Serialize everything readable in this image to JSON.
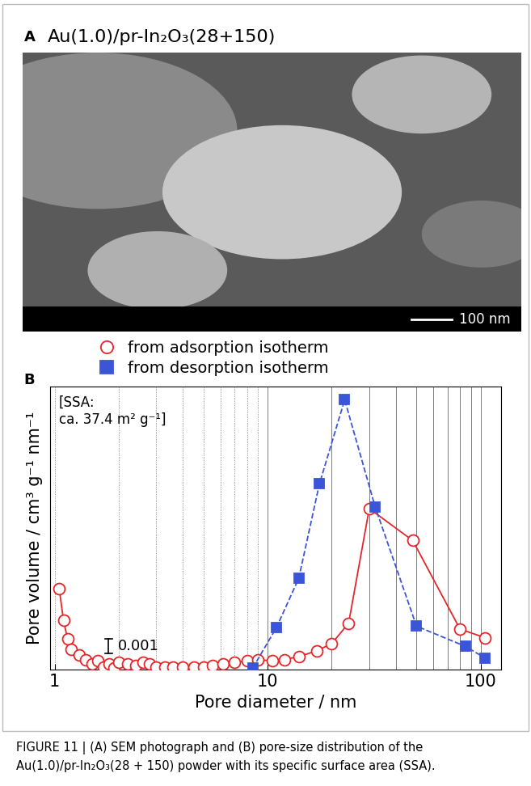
{
  "panel_a": {
    "label": "A",
    "title": "Au(1.0)/pr-In₂O₃(28+150)",
    "scale_bar": "100 nm"
  },
  "chart_data": {
    "type": "line",
    "panel_label": "B",
    "xlabel": "Pore diameter / nm",
    "ylabel": "Pore volume / cm³ g⁻¹ nm⁻¹",
    "annotation": "[SSA:\nca. 37.4 m² g⁻¹]",
    "scale_bar": 0.001,
    "log": "x",
    "grid": true,
    "legend": "upper left",
    "tick_labels": "x",
    "xlim": [
      0.95,
      125
    ],
    "xticks": [
      1,
      10,
      100
    ],
    "ylim": [
      0,
      0.0195
    ],
    "yticks": [],
    "series": [
      {
        "name": "from adsorption isotherm",
        "color": "#e5262b",
        "marker": "o",
        "line_style": "solid",
        "x": [
          1.05,
          1.1,
          1.15,
          1.2,
          1.3,
          1.4,
          1.5,
          1.6,
          1.7,
          1.8,
          1.9,
          2.0,
          2.2,
          2.4,
          2.6,
          2.8,
          3.0,
          3.3,
          3.6,
          4.0,
          4.5,
          5.0,
          5.5,
          6.2,
          7.0,
          8.0,
          9.0,
          10.5,
          12,
          14,
          17,
          20,
          24,
          30,
          48,
          80,
          105
        ],
        "values": [
          0.0056,
          0.0034,
          0.0021,
          0.0014,
          0.001,
          0.0007,
          0.0004,
          0.0006,
          0.0002,
          0.0004,
          0.0001,
          0.0005,
          0.0004,
          0.0003,
          0.0005,
          0.0004,
          0.0002,
          0.0002,
          0.0002,
          0.0002,
          0.0002,
          0.0002,
          0.0003,
          0.0004,
          0.0005,
          0.0006,
          0.0007,
          0.0006,
          0.0007,
          0.0009,
          0.0013,
          0.0018,
          0.0032,
          0.0111,
          0.0089,
          0.0028,
          0.0022
        ]
      },
      {
        "name": "from desorption isotherm",
        "color": "#3b55d8",
        "marker": "s",
        "line_style": "dashed",
        "x": [
          8.5,
          11,
          14,
          17.5,
          23,
          32,
          50,
          85,
          105
        ],
        "values": [
          0.0001,
          0.0029,
          0.0063,
          0.0128,
          0.0186,
          0.0112,
          0.003,
          0.0016,
          0.0008
        ]
      }
    ]
  },
  "caption": "FIGURE 11 | (A) SEM photograph and (B) pore-size distribution of the Au(1.0)/pr-In₂O₃(28 + 150) powder with its specific surface area (SSA)."
}
